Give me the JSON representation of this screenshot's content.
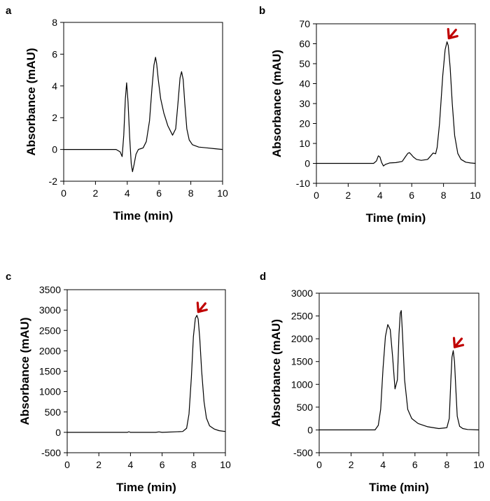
{
  "colors": {
    "trace": "#000000",
    "arrow": "#c00000",
    "axes": "#000000",
    "background": "#ffffff"
  },
  "chart_data": [
    {
      "panel": "a",
      "type": "line",
      "xlabel": "Time (min)",
      "ylabel": "Absorbance (mAU)",
      "xlim": [
        0,
        10
      ],
      "ylim": [
        -2,
        8
      ],
      "xticks": [
        0,
        2,
        4,
        6,
        8,
        10
      ],
      "yticks": [
        -2,
        0,
        2,
        4,
        6,
        8
      ],
      "grid": false,
      "arrow_at": null,
      "series": [
        {
          "x": [
            0,
            3.3,
            3.55,
            3.68,
            3.78,
            3.88,
            3.96,
            4.05,
            4.15,
            4.25,
            4.33,
            4.42,
            4.55,
            4.7,
            4.85,
            5.0,
            5.2,
            5.4,
            5.55,
            5.68,
            5.78,
            5.85,
            5.95,
            6.1,
            6.3,
            6.55,
            6.85,
            7.05,
            7.2,
            7.32,
            7.42,
            7.52,
            7.62,
            7.75,
            7.9,
            8.1,
            8.5,
            9.0,
            9.5,
            10
          ],
          "y": [
            0,
            0,
            -0.15,
            -0.45,
            0.9,
            3.2,
            4.2,
            3.0,
            0.8,
            -0.9,
            -1.4,
            -1.0,
            -0.3,
            0.0,
            0.05,
            0.1,
            0.5,
            1.8,
            3.8,
            5.3,
            5.8,
            5.4,
            4.4,
            3.2,
            2.3,
            1.5,
            0.9,
            1.3,
            3.0,
            4.5,
            4.9,
            4.4,
            2.9,
            1.3,
            0.6,
            0.3,
            0.15,
            0.1,
            0.05,
            0.0
          ]
        }
      ]
    },
    {
      "panel": "b",
      "type": "line",
      "xlabel": "Time (min)",
      "ylabel": "Absorbance (mAU)",
      "xlim": [
        0,
        10
      ],
      "ylim": [
        -10,
        70
      ],
      "xticks": [
        0,
        2,
        4,
        6,
        8,
        10
      ],
      "yticks": [
        -10,
        0,
        10,
        20,
        30,
        40,
        50,
        60,
        70
      ],
      "grid": false,
      "arrow_at": [
        8.25,
        61
      ],
      "series": [
        {
          "x": [
            0,
            3.6,
            3.78,
            3.9,
            4.0,
            4.1,
            4.22,
            4.35,
            4.6,
            5.0,
            5.4,
            5.6,
            5.75,
            5.85,
            5.95,
            6.1,
            6.3,
            6.6,
            7.0,
            7.2,
            7.35,
            7.5,
            7.6,
            7.75,
            7.95,
            8.1,
            8.22,
            8.3,
            8.42,
            8.55,
            8.7,
            8.9,
            9.1,
            9.4,
            9.7,
            10
          ],
          "y": [
            0,
            0,
            1.2,
            3.8,
            3.2,
            0.5,
            -1.3,
            -0.5,
            0.2,
            0.4,
            1.0,
            3.3,
            5.0,
            5.4,
            4.6,
            3.2,
            2.0,
            1.5,
            2.0,
            3.8,
            5.2,
            4.8,
            8.0,
            20.0,
            44.0,
            57.0,
            61.0,
            59.0,
            48.0,
            30.0,
            14.0,
            5.0,
            2.0,
            0.6,
            0.2,
            0.0
          ]
        }
      ]
    },
    {
      "panel": "c",
      "type": "line",
      "xlabel": "Time (min)",
      "ylabel": "Absorbance (mAU)",
      "xlim": [
        0,
        10
      ],
      "ylim": [
        -500,
        3500
      ],
      "xticks": [
        0,
        2,
        4,
        6,
        8,
        10
      ],
      "yticks": [
        -500,
        0,
        500,
        1000,
        1500,
        2000,
        2500,
        3000,
        3500
      ],
      "grid": false,
      "arrow_at": [
        8.2,
        2870
      ],
      "series": [
        {
          "x": [
            0,
            3.8,
            3.9,
            4.0,
            5.6,
            5.8,
            6.0,
            7.3,
            7.55,
            7.7,
            7.85,
            7.98,
            8.1,
            8.2,
            8.28,
            8.38,
            8.5,
            8.65,
            8.8,
            9.0,
            9.3,
            9.6,
            10
          ],
          "y": [
            0,
            0,
            15,
            0,
            0,
            12,
            0,
            20,
            100,
            450,
            1350,
            2350,
            2800,
            2870,
            2780,
            2300,
            1500,
            750,
            350,
            160,
            80,
            40,
            20
          ]
        }
      ]
    },
    {
      "panel": "d",
      "type": "line",
      "xlabel": "Time (min)",
      "ylabel": "Absorbance (mAU)",
      "xlim": [
        0,
        10
      ],
      "ylim": [
        -500,
        3000
      ],
      "xticks": [
        0,
        2,
        4,
        6,
        8,
        10
      ],
      "yticks": [
        -500,
        0,
        500,
        1000,
        1500,
        2000,
        2500,
        3000
      ],
      "grid": false,
      "arrow_at": [
        8.4,
        1740
      ],
      "series": [
        {
          "x": [
            0,
            3.5,
            3.7,
            3.85,
            4.0,
            4.15,
            4.3,
            4.45,
            4.6,
            4.75,
            4.9,
            5.0,
            5.08,
            5.14,
            5.22,
            5.35,
            5.55,
            5.8,
            6.2,
            6.8,
            7.5,
            8.0,
            8.15,
            8.25,
            8.32,
            8.4,
            8.48,
            8.56,
            8.65,
            8.8,
            9.0,
            9.3,
            10
          ],
          "y": [
            0,
            0,
            100,
            450,
            1350,
            2050,
            2310,
            2200,
            1600,
            900,
            1100,
            2100,
            2560,
            2620,
            2100,
            1100,
            450,
            250,
            140,
            70,
            30,
            50,
            250,
            1100,
            1600,
            1740,
            1500,
            900,
            300,
            80,
            30,
            10,
            0
          ]
        }
      ]
    }
  ]
}
